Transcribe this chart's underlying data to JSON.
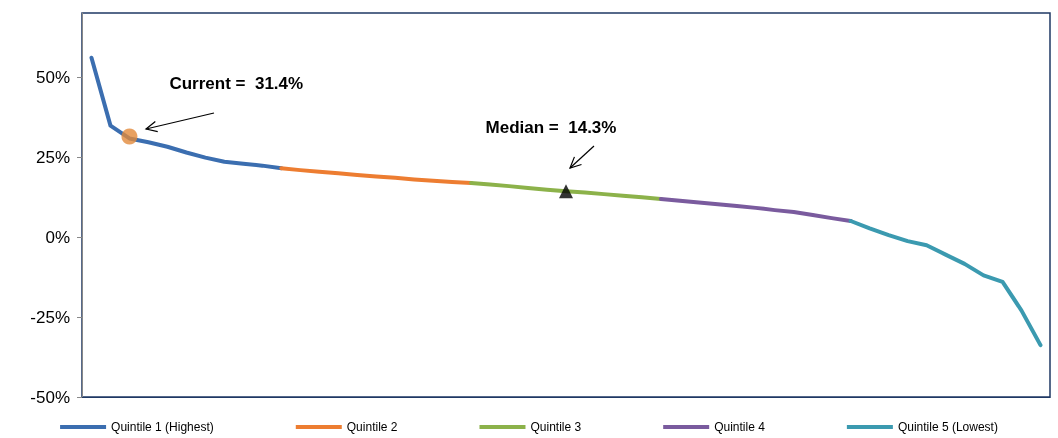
{
  "chart_data": {
    "type": "line",
    "ylim": [
      -50,
      70
    ],
    "yticks": [
      {
        "value": -50,
        "label": "-50%"
      },
      {
        "value": -25,
        "label": "-25%"
      },
      {
        "value": 0,
        "label": "0%"
      },
      {
        "value": 25,
        "label": "25%"
      },
      {
        "value": 50,
        "label": "50%"
      }
    ],
    "categories": [
      null,
      null,
      null,
      null,
      null,
      null,
      null,
      null,
      null,
      null,
      null,
      null,
      null,
      null,
      null,
      null,
      null,
      null,
      null,
      null,
      null,
      null,
      null,
      null,
      null,
      null,
      null,
      null,
      null,
      null,
      null,
      null,
      null,
      null,
      null,
      null,
      null,
      null,
      null,
      null,
      null,
      null,
      null,
      null,
      null,
      null,
      null,
      null,
      null,
      null,
      null
    ],
    "tick_labels": "y",
    "grid": false,
    "legend": "bottom",
    "marker": "none",
    "line_style": "solid",
    "series": [
      {
        "name": "Quintile 1 (Highest)",
        "color": "#3b6eb0",
        "values": [
          56,
          34.8,
          30.8,
          29.6,
          28.2,
          26.4,
          24.8,
          23.5,
          22.9,
          22.3,
          21.5,
          null,
          null,
          null,
          null,
          null,
          null,
          null,
          null,
          null,
          null,
          null,
          null,
          null,
          null,
          null,
          null,
          null,
          null,
          null,
          null,
          null,
          null,
          null,
          null,
          null,
          null,
          null,
          null,
          null,
          null,
          null,
          null,
          null,
          null,
          null,
          null,
          null,
          null,
          null,
          null
        ]
      },
      {
        "name": "Quintile 2",
        "color": "#ed7d31",
        "values": [
          null,
          null,
          null,
          null,
          null,
          null,
          null,
          null,
          null,
          null,
          21.5,
          20.9,
          20.4,
          19.9,
          19.4,
          18.9,
          18.5,
          18,
          17.6,
          17.2,
          16.9,
          null,
          null,
          null,
          null,
          null,
          null,
          null,
          null,
          null,
          null,
          null,
          null,
          null,
          null,
          null,
          null,
          null,
          null,
          null,
          null,
          null,
          null,
          null,
          null,
          null,
          null,
          null,
          null,
          null,
          null
        ]
      },
      {
        "name": "Quintile 3",
        "color": "#8cb24a",
        "values": [
          null,
          null,
          null,
          null,
          null,
          null,
          null,
          null,
          null,
          null,
          null,
          null,
          null,
          null,
          null,
          null,
          null,
          null,
          null,
          null,
          16.9,
          16.4,
          15.9,
          15.3,
          14.8,
          14.3,
          13.9,
          13.4,
          12.9,
          12.4,
          11.9,
          null,
          null,
          null,
          null,
          null,
          null,
          null,
          null,
          null,
          null,
          null,
          null,
          null,
          null,
          null,
          null,
          null,
          null,
          null,
          null
        ]
      },
      {
        "name": "Quintile 4",
        "color": "#7a5b9e",
        "values": [
          null,
          null,
          null,
          null,
          null,
          null,
          null,
          null,
          null,
          null,
          null,
          null,
          null,
          null,
          null,
          null,
          null,
          null,
          null,
          null,
          null,
          null,
          null,
          null,
          null,
          null,
          null,
          null,
          null,
          null,
          11.9,
          11.3,
          10.8,
          10.2,
          9.7,
          9.1,
          8.4,
          7.8,
          6.9,
          5.9,
          5,
          null,
          null,
          null,
          null,
          null,
          null,
          null,
          null,
          null,
          null
        ]
      },
      {
        "name": "Quintile 5 (Lowest)",
        "color": "#3b9ab0",
        "values": [
          null,
          null,
          null,
          null,
          null,
          null,
          null,
          null,
          null,
          null,
          null,
          null,
          null,
          null,
          null,
          null,
          null,
          null,
          null,
          null,
          null,
          null,
          null,
          null,
          null,
          null,
          null,
          null,
          null,
          null,
          null,
          null,
          null,
          null,
          null,
          null,
          null,
          null,
          null,
          null,
          5,
          2.7,
          0.6,
          -1.3,
          -2.6,
          -5.5,
          -8.4,
          -12,
          -14,
          -23,
          -33.8
        ]
      },
      {
        "type": "scatter",
        "marker": "circle",
        "color": "#e2893b",
        "values": [
          null,
          null,
          31.4,
          null,
          null,
          null,
          null,
          null,
          null,
          null,
          null,
          null,
          null,
          null,
          null,
          null,
          null,
          null,
          null,
          null,
          null,
          null,
          null,
          null,
          null,
          null,
          null,
          null,
          null,
          null,
          null,
          null,
          null,
          null,
          null,
          null,
          null,
          null,
          null,
          null,
          null,
          null,
          null,
          null,
          null,
          null,
          null,
          null,
          null,
          null,
          null
        ]
      },
      {
        "type": "scatter",
        "marker": "triangle",
        "color": "#000000",
        "values": [
          null,
          null,
          null,
          null,
          null,
          null,
          null,
          null,
          null,
          null,
          null,
          null,
          null,
          null,
          null,
          null,
          null,
          null,
          null,
          null,
          null,
          null,
          null,
          null,
          null,
          14.3,
          null,
          null,
          null,
          null,
          null,
          null,
          null,
          null,
          null,
          null,
          null,
          null,
          null,
          null,
          null,
          null,
          null,
          null,
          null,
          null,
          null,
          null,
          null,
          null,
          null
        ]
      }
    ],
    "annotations": [
      "Current =  31.4%",
      "Median =  14.3%"
    ]
  }
}
